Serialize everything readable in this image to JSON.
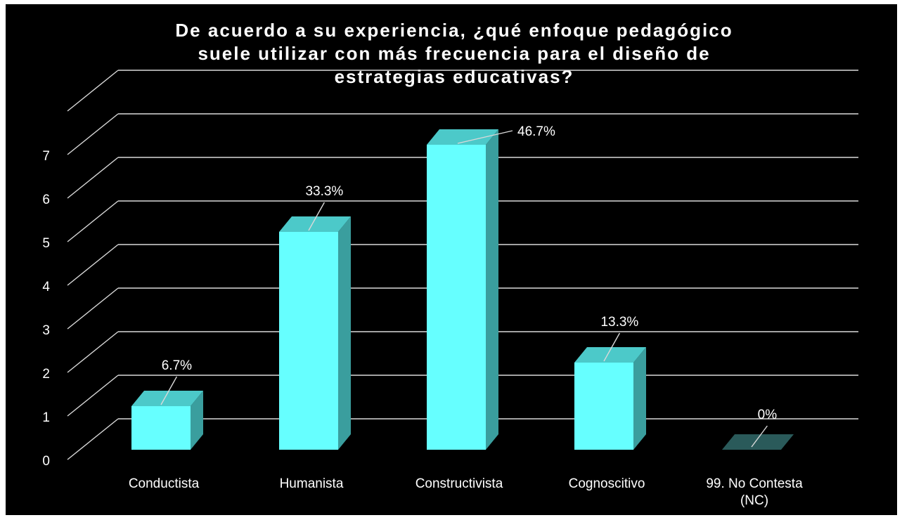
{
  "chart_data": {
    "type": "bar",
    "title": "De acuerdo a su experiencia, ¿qué enfoque pedagógico suele utilizar con más frecuencia para el diseño de estrategias educativas?",
    "title_lines": [
      "De acuerdo a su experiencia, ¿qué enfoque pedagógico",
      "suele utilizar con más frecuencia para el diseño de",
      "estrategias educativas?"
    ],
    "categories": [
      "Conductista",
      "Humanista",
      "Constructivista",
      "Cognoscitivo",
      "99. No Contesta (NC)"
    ],
    "category_lines": [
      [
        "Conductista"
      ],
      [
        "Humanista"
      ],
      [
        "Constructivista"
      ],
      [
        "Cognoscitivo"
      ],
      [
        "99. No Contesta",
        "(NC)"
      ]
    ],
    "values": [
      1,
      5,
      7,
      2,
      0
    ],
    "data_labels": [
      "6.7%",
      "33.3%",
      "46.7%",
      "13.3%",
      "0%"
    ],
    "y_ticks": [
      "0",
      "1",
      "2",
      "3",
      "4",
      "5",
      "6",
      "7"
    ],
    "ylim": [
      0,
      8
    ],
    "xlabel": "",
    "ylabel": "",
    "grid": true,
    "legend": "none",
    "style": "3d-column"
  },
  "colors": {
    "background": "#000000",
    "bar_front": "#66ffff",
    "bar_top": "#4cc9c9",
    "bar_side": "#3a9e9e",
    "grid": "#d9d9d9",
    "text": "#ffffff"
  }
}
